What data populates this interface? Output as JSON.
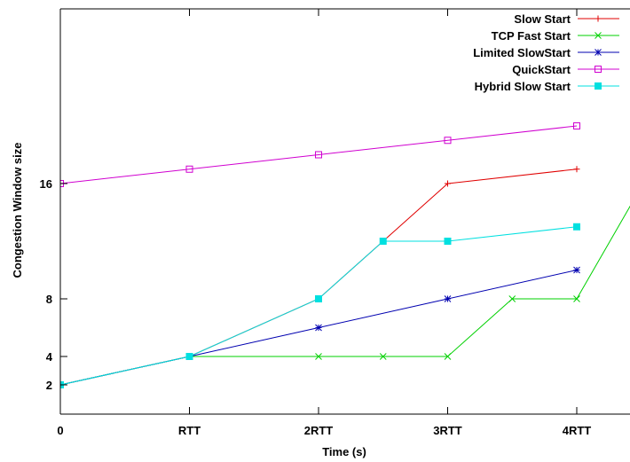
{
  "chart_data": {
    "type": "line",
    "title": "",
    "xlabel": "Time (s)",
    "ylabel": "Congestion Window size",
    "x_ticks": [
      {
        "value": 0,
        "label": "0"
      },
      {
        "value": 1,
        "label": "RTT"
      },
      {
        "value": 2,
        "label": "2RTT"
      },
      {
        "value": 3,
        "label": "3RTT"
      },
      {
        "value": 4,
        "label": "4RTT"
      }
    ],
    "y_ticks": [
      {
        "value": 2,
        "label": "2"
      },
      {
        "value": 4,
        "label": "4"
      },
      {
        "value": 8,
        "label": "8"
      },
      {
        "value": 16,
        "label": "16"
      }
    ],
    "xlim": [
      0,
      4.45
    ],
    "ylim": [
      0,
      32
    ],
    "grid": false,
    "legend_position": "top-right",
    "series": [
      {
        "name": "Slow Start",
        "color": "#e00000",
        "marker": "plus",
        "x": [
          0,
          1,
          2,
          2.5,
          3,
          4
        ],
        "y": [
          2,
          4,
          8,
          12,
          16,
          17
        ]
      },
      {
        "name": "TCP Fast Start",
        "color": "#00d000",
        "marker": "cross",
        "x": [
          0,
          1,
          2,
          2.5,
          3,
          3.5,
          4,
          4.45
        ],
        "y": [
          2,
          4,
          4,
          4,
          4,
          8,
          8,
          15
        ]
      },
      {
        "name": "Limited SlowStart",
        "color": "#0000b0",
        "marker": "star",
        "x": [
          0,
          1,
          2,
          3,
          4
        ],
        "y": [
          2,
          4,
          6,
          8,
          10
        ]
      },
      {
        "name": "QuickStart",
        "color": "#d000d0",
        "marker": "square-open",
        "x": [
          0,
          1,
          2,
          3,
          4
        ],
        "y": [
          16,
          17,
          18,
          19,
          20
        ]
      },
      {
        "name": "Hybrid Slow Start",
        "color": "#00e0e0",
        "marker": "square-filled",
        "x": [
          0,
          1,
          2,
          2.5,
          3,
          4
        ],
        "y": [
          2,
          4,
          8,
          12,
          12,
          13
        ]
      }
    ]
  }
}
